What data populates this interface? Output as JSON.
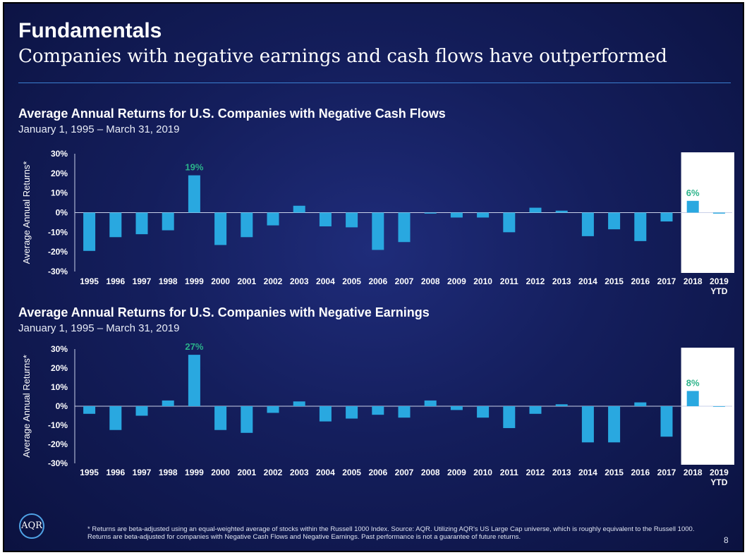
{
  "header": {
    "title": "Fundamentals",
    "subtitle": "Companies with negative earnings and cash flows have outperformed"
  },
  "chart_data": [
    {
      "type": "bar",
      "title": "Average Annual Returns for U.S. Companies with Negative Cash Flows",
      "subtitle": "January 1, 1995 – March 31, 2019",
      "ylabel": "Average Annual Returns*",
      "ylim": [
        -30,
        30
      ],
      "yticks": [
        "30%",
        "20%",
        "10%",
        "0%",
        "-10%",
        "-20%",
        "-30%"
      ],
      "categories": [
        "1995",
        "1996",
        "1997",
        "1998",
        "1999",
        "2000",
        "2001",
        "2002",
        "2003",
        "2004",
        "2005",
        "2006",
        "2007",
        "2008",
        "2009",
        "2010",
        "2011",
        "2012",
        "2013",
        "2014",
        "2015",
        "2016",
        "2017",
        "2018",
        "2019"
      ],
      "category_sublabel": {
        "2019": "YTD"
      },
      "values": [
        -19.5,
        -12.5,
        -11,
        -9,
        19,
        -16.5,
        -12.5,
        -6.5,
        3.5,
        -7,
        -7.5,
        -19,
        -15,
        -0.5,
        -2.5,
        -2.5,
        -10,
        2.5,
        1,
        -12,
        -8.5,
        -14.5,
        -4.5,
        6,
        -0.5
      ],
      "data_labels": {
        "1999": "19%",
        "2018": "6%"
      },
      "highlight": [
        "2018",
        "2019"
      ]
    },
    {
      "type": "bar",
      "title": "Average Annual Returns for U.S. Companies with Negative Earnings",
      "subtitle": "January 1, 1995 – March 31, 2019",
      "ylabel": "Average Annual Returns*",
      "ylim": [
        -30,
        30
      ],
      "yticks": [
        "30%",
        "20%",
        "10%",
        "0%",
        "-10%",
        "-20%",
        "-30%"
      ],
      "categories": [
        "1995",
        "1996",
        "1997",
        "1998",
        "1999",
        "2000",
        "2001",
        "2002",
        "2003",
        "2004",
        "2005",
        "2006",
        "2007",
        "2008",
        "2009",
        "2010",
        "2011",
        "2012",
        "2013",
        "2014",
        "2015",
        "2016",
        "2017",
        "2018",
        "2019"
      ],
      "category_sublabel": {
        "2019": "YTD"
      },
      "values": [
        -4,
        -12.5,
        -5,
        3,
        27,
        -12.5,
        -14,
        -3.5,
        2.5,
        -8,
        -6.5,
        -4.5,
        -6,
        3,
        -2,
        -6,
        -11.5,
        -4,
        1,
        -19,
        -19,
        2,
        -16,
        8,
        0
      ],
      "data_labels": {
        "1999": "27%",
        "2018": "8%"
      },
      "highlight": [
        "2018",
        "2019"
      ]
    }
  ],
  "footer": {
    "logo_text": "AQR",
    "footnote": "* Returns are beta-adjusted using an equal-weighted average of stocks within the Russell 1000 Index. Source: AQR. Utilizing AQR's US Large Cap universe, which is roughly equivalent to the Russell 1000. Returns are beta-adjusted for companies with Negative Cash Flows and Negative Earnings. Past performance is not a guarantee of future returns.",
    "page_number": "8"
  },
  "colors": {
    "bar": "#29a8e0",
    "label": "#2bb38a",
    "highlight_box": "#ffffff",
    "text": "#ffffff"
  }
}
